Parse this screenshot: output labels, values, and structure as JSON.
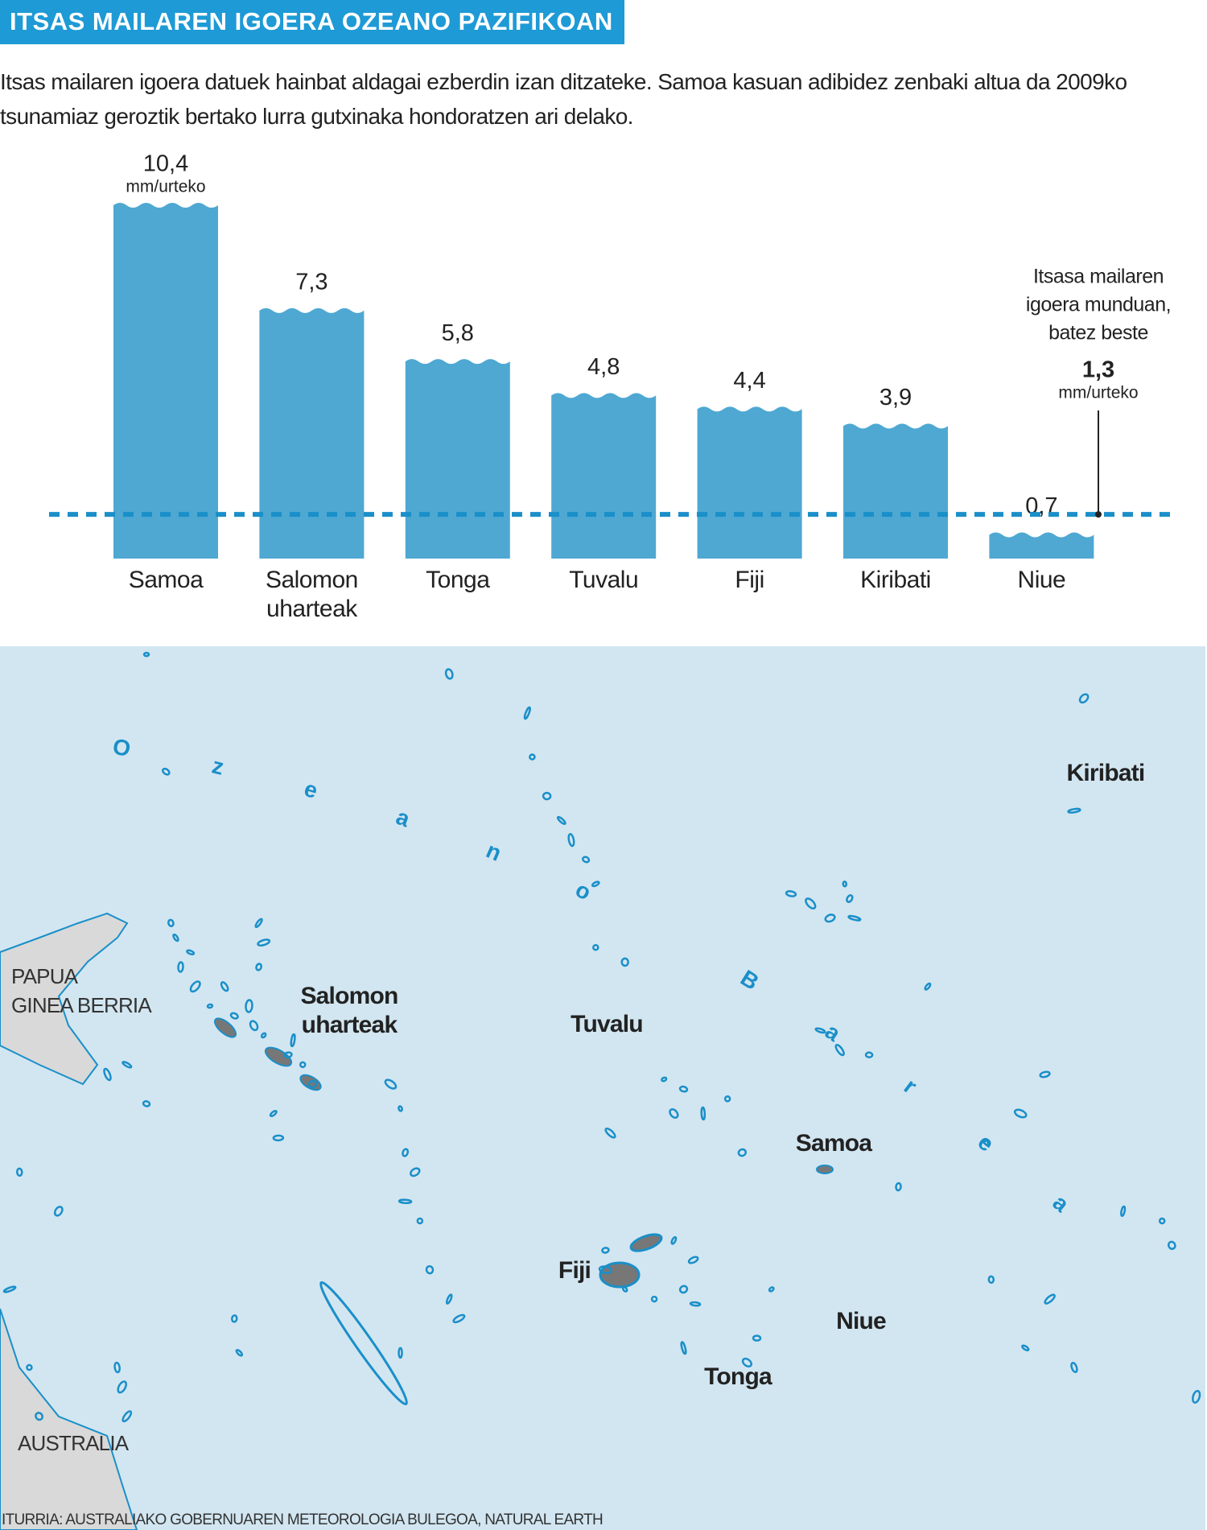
{
  "chart_data": {
    "type": "bar",
    "title": "ITSAS MAILAREN IGOERA OZEANO PAZIFIKOAN",
    "subtitle": "Itsas mailaren igoera datuek hainbat aldagai ezberdin izan ditzateke. Samoa kasuan adibidez zenbaki altua da 2009ko tsunamiaz geroztik bertako lurra gutxinaka hondoratzen ari delako.",
    "categories": [
      "Samoa",
      "Salomon uharteak",
      "Tonga",
      "Tuvalu",
      "Fiji",
      "Kiribati",
      "Niue"
    ],
    "values": [
      10.4,
      7.3,
      5.8,
      4.8,
      4.4,
      3.9,
      0.7
    ],
    "value_labels": [
      "10,4",
      "7,3",
      "5,8",
      "4,8",
      "4,4",
      "3,9",
      "0,7"
    ],
    "unit_label": "mm/urteko",
    "color": "#4ea8d2",
    "reference": {
      "value": 1.3,
      "label": "1,3",
      "color": "#1a8fc9",
      "text_lines": [
        "Itsasa mailaren",
        "igoera munduan,",
        "batez beste"
      ]
    },
    "map": {
      "ocean_label": "Ozeano Barea",
      "island_labels": [
        [
          "Kiribati"
        ],
        [
          "Salomon",
          "uharteak"
        ],
        [
          "Tuvalu"
        ],
        [
          "Samoa"
        ],
        [
          "Fiji"
        ],
        [
          "Niue"
        ],
        [
          "Tonga"
        ]
      ],
      "land_labels": [
        [
          "PAPUA",
          "GINEA BERRIA"
        ],
        [
          "AUSTRALIA"
        ]
      ]
    },
    "source": "ITURRIA: AUSTRALIAKO GOBERNUAREN METEOROLOGIA BULEGOA, NATURAL EARTH"
  }
}
